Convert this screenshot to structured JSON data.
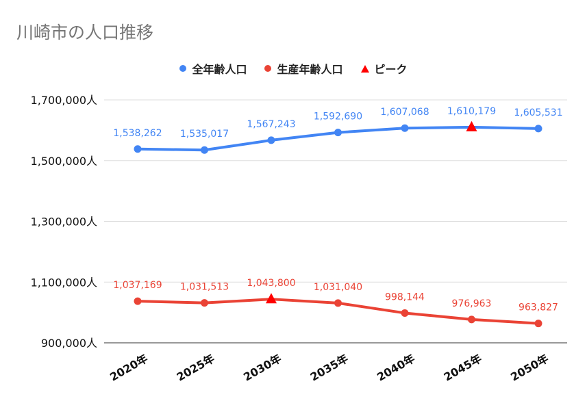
{
  "title": "川崎市の人口推移",
  "legend": [
    {
      "label": "全年齢人口",
      "color": "#4285f4",
      "marker": "circle"
    },
    {
      "label": "生産年齢人口",
      "color": "#ea4335",
      "marker": "circle"
    },
    {
      "label": "ピーク",
      "color": "#ff0000",
      "marker": "triangle"
    }
  ],
  "chart_data": {
    "type": "line",
    "categories": [
      "2020年",
      "2025年",
      "2030年",
      "2035年",
      "2040年",
      "2045年",
      "2050年"
    ],
    "series": [
      {
        "name": "全年齢人口",
        "color": "#4285f4",
        "values": [
          1538262,
          1535017,
          1567243,
          1592690,
          1607068,
          1610179,
          1605531
        ],
        "labels": [
          "1,538,262",
          "1,535,017",
          "1,567,243",
          "1,592,690",
          "1,607,068",
          "1,610,179",
          "1,605,531"
        ],
        "peak_index": 5
      },
      {
        "name": "生産年齢人口",
        "color": "#ea4335",
        "values": [
          1037169,
          1031513,
          1043800,
          1031040,
          998144,
          976963,
          963827
        ],
        "labels": [
          "1,037,169",
          "1,031,513",
          "1,043,800",
          "1,031,040",
          "998,144",
          "976,963",
          "963,827"
        ],
        "peak_index": 2
      }
    ],
    "peak_color": "#ff0000",
    "yticks": [
      {
        "value": 900000,
        "label": "900,000人"
      },
      {
        "value": 1100000,
        "label": "1,100,000人"
      },
      {
        "value": 1300000,
        "label": "1,300,000人"
      },
      {
        "value": 1500000,
        "label": "1,500,000人"
      },
      {
        "value": 1700000,
        "label": "1,700,000人"
      }
    ],
    "ylim": [
      900000,
      1700000
    ],
    "grid": true,
    "legend_position": "top"
  }
}
